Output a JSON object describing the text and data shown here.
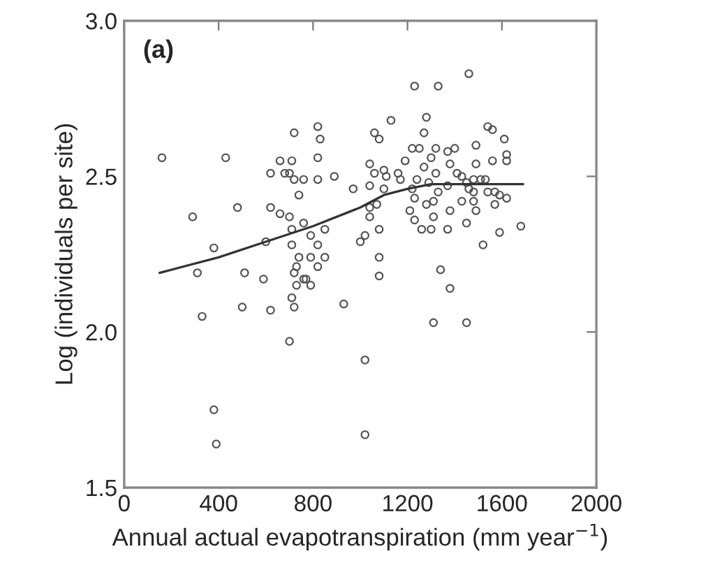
{
  "chart_data": {
    "type": "scatter",
    "xlabel": "Annual actual evapotranspiration (mm year$^{−1}$)",
    "ylabel": "Log (individuals per site)",
    "annotations": [
      "(a)"
    ],
    "xlim": [
      0,
      2000
    ],
    "xticks": [
      0,
      400,
      800,
      1200,
      1600,
      2000
    ],
    "ylim": [
      1.5,
      3.0
    ],
    "yticks": [
      {
        "value": 1.5,
        "label": "1.5"
      },
      {
        "value": 2.0,
        "label": "2.0"
      },
      {
        "value": 2.5,
        "label": "2.5"
      },
      {
        "value": 3.0,
        "label": "3.0"
      }
    ],
    "grid": false,
    "legend": false,
    "series": [
      {
        "marker": "circle",
        "color": "#555555",
        "x": [
          160,
          430,
          290,
          480,
          380,
          310,
          510,
          330,
          500,
          620,
          590,
          380,
          390,
          720,
          820,
          830,
          660,
          710,
          820,
          620,
          680,
          700,
          720,
          760,
          820,
          890,
          740,
          620,
          660,
          700,
          760,
          710,
          790,
          850,
          820,
          710,
          740,
          730,
          720,
          760,
          770,
          730,
          790,
          790,
          820,
          850,
          710,
          720,
          700,
          930,
          970,
          1000,
          1020,
          1040,
          1040,
          1040,
          1040,
          1060,
          1080,
          1060,
          1070,
          1080,
          1080,
          1080,
          1100,
          1100,
          1110,
          1130,
          1020,
          1020,
          600,
          1460,
          1230,
          1330,
          1280,
          1270,
          1540,
          1560,
          1610,
          1620,
          1620,
          1560,
          1490,
          1490,
          1220,
          1250,
          1320,
          1370,
          1400,
          1270,
          1300,
          1190,
          1160,
          1170,
          1240,
          1290,
          1320,
          1380,
          1410,
          1430,
          1450,
          1480,
          1510,
          1530,
          1460,
          1480,
          1540,
          1570,
          1590,
          1620,
          1570,
          1480,
          1490,
          1430,
          1380,
          1310,
          1280,
          1210,
          1230,
          1330,
          1370,
          1220,
          1230,
          1260,
          1300,
          1310,
          1370,
          1450,
          1590,
          1680,
          1520,
          1340,
          1380,
          1310,
          1450
        ],
        "values": [
          2.56,
          2.56,
          2.37,
          2.4,
          2.27,
          2.19,
          2.19,
          2.05,
          2.08,
          2.07,
          2.17,
          1.75,
          1.64,
          2.64,
          2.66,
          2.62,
          2.55,
          2.55,
          2.56,
          2.51,
          2.51,
          2.51,
          2.49,
          2.49,
          2.49,
          2.5,
          2.44,
          2.4,
          2.38,
          2.37,
          2.35,
          2.33,
          2.31,
          2.33,
          2.28,
          2.28,
          2.24,
          2.21,
          2.19,
          2.17,
          2.17,
          2.15,
          2.15,
          2.24,
          2.21,
          2.24,
          2.11,
          2.08,
          1.97,
          2.09,
          2.46,
          2.29,
          2.31,
          2.37,
          2.4,
          2.47,
          2.54,
          2.64,
          2.62,
          2.51,
          2.41,
          2.33,
          2.24,
          2.18,
          2.52,
          2.46,
          2.5,
          2.68,
          1.91,
          1.67,
          2.29,
          2.83,
          2.79,
          2.79,
          2.69,
          2.64,
          2.66,
          2.65,
          2.62,
          2.57,
          2.55,
          2.55,
          2.6,
          2.54,
          2.59,
          2.59,
          2.59,
          2.58,
          2.59,
          2.53,
          2.56,
          2.55,
          2.51,
          2.49,
          2.49,
          2.48,
          2.51,
          2.54,
          2.51,
          2.5,
          2.48,
          2.49,
          2.49,
          2.49,
          2.46,
          2.45,
          2.45,
          2.45,
          2.44,
          2.43,
          2.41,
          2.42,
          2.39,
          2.42,
          2.39,
          2.42,
          2.41,
          2.39,
          2.43,
          2.45,
          2.47,
          2.46,
          2.36,
          2.33,
          2.33,
          2.37,
          2.33,
          2.35,
          2.32,
          2.34,
          2.28,
          2.2,
          2.14,
          2.03,
          2.03
        ]
      },
      {
        "type": "line",
        "marker": "none",
        "line_style": "solid",
        "color": "#333333",
        "x": [
          150,
          400,
          600,
          800,
          1000,
          1100,
          1200,
          1300,
          1690
        ],
        "values": [
          2.19,
          2.24,
          2.29,
          2.34,
          2.4,
          2.44,
          2.46,
          2.475,
          2.475
        ]
      }
    ]
  }
}
